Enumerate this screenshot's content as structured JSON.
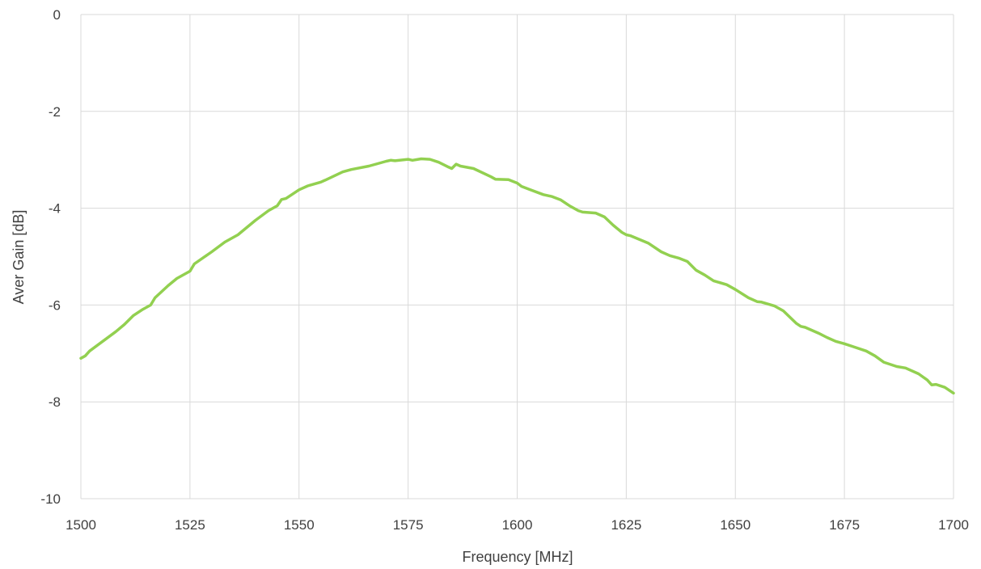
{
  "chart_data": {
    "type": "line",
    "title": "",
    "xlabel": "Frequency [MHz]",
    "ylabel": "Aver Gain [dB]",
    "xlim": [
      1500,
      1700
    ],
    "ylim": [
      -10,
      0
    ],
    "x_ticks": [
      "1500",
      "1525",
      "1550",
      "1575",
      "1600",
      "1625",
      "1650",
      "1675",
      "1700"
    ],
    "y_ticks": [
      "0",
      "-2",
      "-4",
      "-6",
      "-8",
      "-10"
    ],
    "x_tick_values": [
      1500,
      1525,
      1550,
      1575,
      1600,
      1625,
      1650,
      1675,
      1700
    ],
    "y_tick_values": [
      0,
      -2,
      -4,
      -6,
      -8,
      -10
    ],
    "grid": true,
    "legend": "none",
    "series": [
      {
        "color": "#92d050",
        "x": [
          1500,
          1501,
          1502,
          1505,
          1508,
          1510,
          1512,
          1514,
          1515,
          1516,
          1517,
          1520,
          1522,
          1524,
          1525,
          1526,
          1530,
          1533,
          1536,
          1540,
          1543,
          1545,
          1546,
          1547,
          1550,
          1552,
          1555,
          1556,
          1560,
          1562,
          1566,
          1568,
          1570,
          1571,
          1572,
          1575,
          1576,
          1578,
          1580,
          1582,
          1584,
          1585,
          1586,
          1587,
          1590,
          1594,
          1595,
          1598,
          1600,
          1601,
          1603,
          1606,
          1608,
          1610,
          1612,
          1614,
          1615,
          1618,
          1620,
          1622,
          1624,
          1625,
          1626,
          1630,
          1633,
          1635,
          1637,
          1639,
          1641,
          1643,
          1645,
          1648,
          1650,
          1653,
          1655,
          1656,
          1659,
          1661,
          1664,
          1665,
          1666,
          1669,
          1671,
          1673,
          1675,
          1677,
          1680,
          1682,
          1684,
          1687,
          1689,
          1692,
          1694,
          1695,
          1696,
          1698,
          1700
        ],
        "y": [
          -7.1,
          -7.05,
          -6.95,
          -6.75,
          -6.55,
          -6.4,
          -6.22,
          -6.1,
          -6.05,
          -6.0,
          -5.85,
          -5.6,
          -5.45,
          -5.35,
          -5.3,
          -5.15,
          -4.9,
          -4.7,
          -4.55,
          -4.25,
          -4.05,
          -3.95,
          -3.82,
          -3.8,
          -3.62,
          -3.54,
          -3.46,
          -3.42,
          -3.25,
          -3.2,
          -3.13,
          -3.08,
          -3.03,
          -3.01,
          -3.02,
          -2.99,
          -3.01,
          -2.98,
          -2.99,
          -3.05,
          -3.14,
          -3.18,
          -3.09,
          -3.13,
          -3.18,
          -3.35,
          -3.4,
          -3.41,
          -3.48,
          -3.55,
          -3.62,
          -3.72,
          -3.76,
          -3.83,
          -3.95,
          -4.05,
          -4.08,
          -4.1,
          -4.18,
          -4.35,
          -4.5,
          -4.55,
          -4.57,
          -4.72,
          -4.9,
          -4.98,
          -5.03,
          -5.1,
          -5.28,
          -5.38,
          -5.5,
          -5.58,
          -5.68,
          -5.85,
          -5.93,
          -5.94,
          -6.02,
          -6.12,
          -6.38,
          -6.44,
          -6.46,
          -6.58,
          -6.67,
          -6.75,
          -6.8,
          -6.86,
          -6.95,
          -7.05,
          -7.18,
          -7.27,
          -7.3,
          -7.42,
          -7.55,
          -7.65,
          -7.64,
          -7.7,
          -7.82
        ]
      }
    ]
  },
  "colors": {
    "grid": "#d9d9d9",
    "line": "#92d050",
    "text": "#404040"
  }
}
